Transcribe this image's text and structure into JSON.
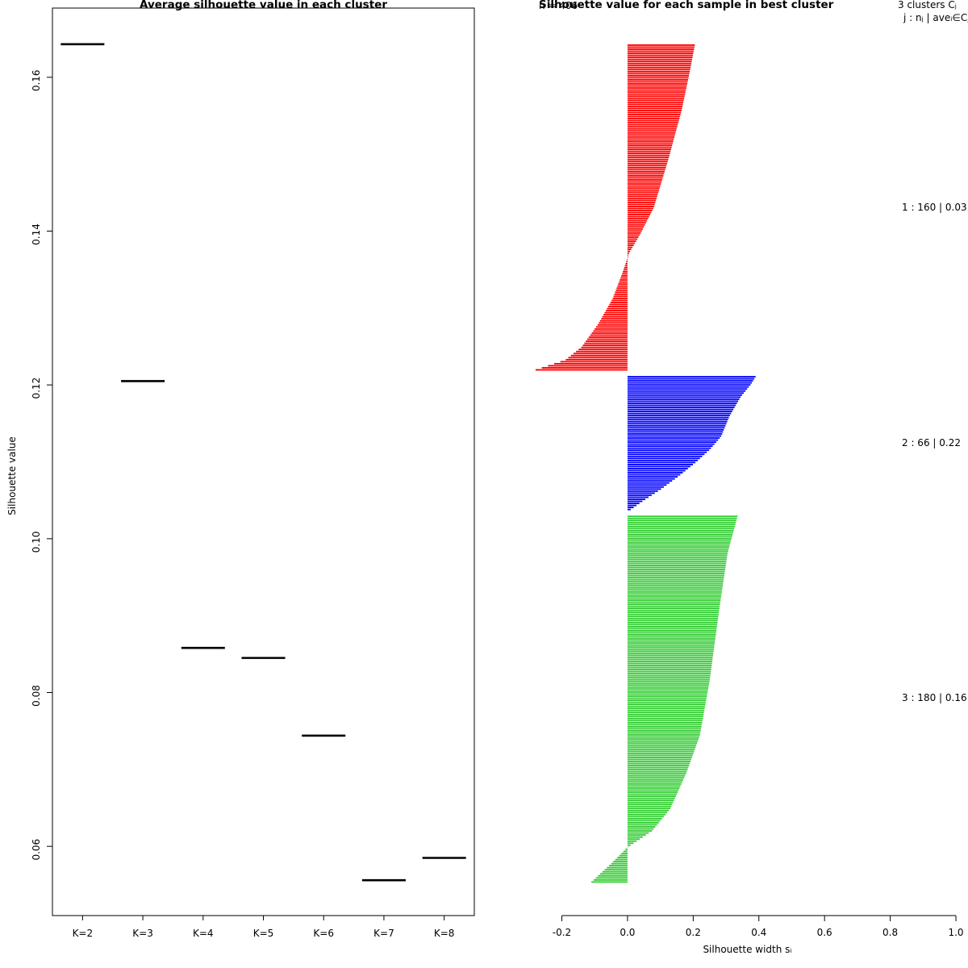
{
  "chart_data": [
    {
      "type": "scatter",
      "marker": "horizontal-segment",
      "title": "Average silhouette value in each cluster",
      "xlabel": "",
      "ylabel": "Silhouette value",
      "categories": [
        "K=2",
        "K=3",
        "K=4",
        "K=5",
        "K=6",
        "K=7",
        "K=8"
      ],
      "values": [
        0.1643,
        0.1205,
        0.0858,
        0.0845,
        0.0744,
        0.0556,
        0.0585
      ],
      "ylim": [
        0.051,
        0.169
      ],
      "yticks": [
        0.06,
        0.08,
        0.1,
        0.12,
        0.14,
        0.16
      ],
      "grid": false,
      "box": true
    },
    {
      "type": "bar",
      "orientation": "horizontal",
      "title": "Silhouette value for each sample in best cluster",
      "n_label": "n = 406",
      "xlabel": "Silhouette width sᵢ",
      "legend_header1": "3 clusters Cⱼ",
      "legend_header2": "j :  nⱼ | aveᵢ∈Cⱼ sᵢ",
      "xlim": [
        -0.27,
        1.0
      ],
      "xticks": [
        -0.2,
        0.0,
        0.2,
        0.4,
        0.6,
        0.8,
        1.0
      ],
      "total_n": 406,
      "grid": false,
      "box": false,
      "clusters": [
        {
          "j": 1,
          "n": 160,
          "ave": 0.03,
          "color": "#ff0000",
          "label": "1 :  160 | 0.03",
          "profile": [
            [
              0,
              0.205
            ],
            [
              0.08,
              0.19
            ],
            [
              0.2,
              0.165
            ],
            [
              0.35,
              0.125
            ],
            [
              0.5,
              0.08
            ],
            [
              0.58,
              0.04
            ],
            [
              0.64,
              0.005
            ],
            [
              0.7,
              -0.015
            ],
            [
              0.78,
              -0.045
            ],
            [
              0.86,
              -0.09
            ],
            [
              0.93,
              -0.14
            ],
            [
              0.97,
              -0.19
            ],
            [
              1,
              -0.28
            ]
          ]
        },
        {
          "j": 2,
          "n": 66,
          "ave": 0.22,
          "color": "#0000ff",
          "label": "2 :  66 | 0.22",
          "profile": [
            [
              0,
              0.39
            ],
            [
              0.06,
              0.375
            ],
            [
              0.15,
              0.345
            ],
            [
              0.3,
              0.31
            ],
            [
              0.45,
              0.285
            ],
            [
              0.55,
              0.25
            ],
            [
              0.65,
              0.205
            ],
            [
              0.75,
              0.155
            ],
            [
              0.85,
              0.1
            ],
            [
              0.93,
              0.05
            ],
            [
              1,
              0.01
            ]
          ]
        },
        {
          "j": 3,
          "n": 180,
          "ave": 0.16,
          "color": "#33cc33",
          "label": "3 :  180 | 0.16",
          "profile": [
            [
              0,
              0.335
            ],
            [
              0.1,
              0.305
            ],
            [
              0.25,
              0.28
            ],
            [
              0.45,
              0.25
            ],
            [
              0.6,
              0.22
            ],
            [
              0.7,
              0.18
            ],
            [
              0.8,
              0.13
            ],
            [
              0.86,
              0.075
            ],
            [
              0.905,
              0.0
            ],
            [
              0.95,
              -0.05
            ],
            [
              1,
              -0.11
            ]
          ]
        }
      ]
    }
  ]
}
